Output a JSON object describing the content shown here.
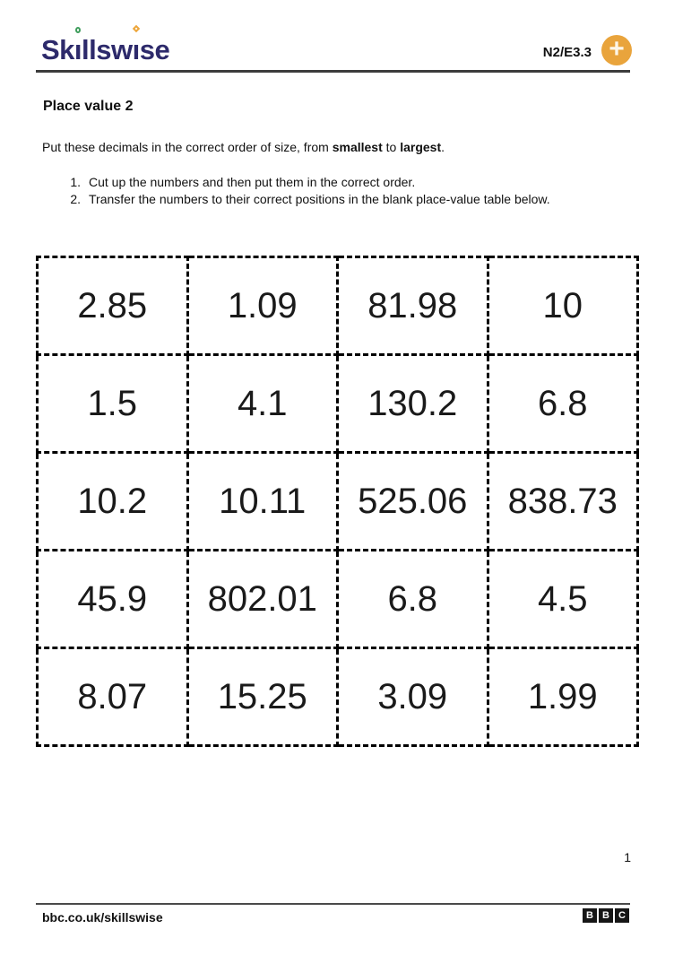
{
  "colors": {
    "logo_indigo": "#2d2a6b",
    "accent_orange": "#e9a43c",
    "dot_green": "#3e9d5c",
    "rule_dark": "#3c3c3c",
    "card_border": "#000000"
  },
  "header": {
    "logo_text": "Skillswise",
    "logo_segments": {
      "s1": "Sk",
      "i1": "ı",
      "s2": "llsw",
      "i2": "ı",
      "s3": "se"
    },
    "level_code": "N2/E3.3",
    "plus_glyph": "+"
  },
  "content": {
    "title": "Place value 2",
    "intro": {
      "pre": "Put these decimals in the correct order of size, from ",
      "bold1": "smallest",
      "mid": " to ",
      "bold2": "largest",
      "post": "."
    },
    "instructions": [
      {
        "num": "1.",
        "text": "Cut up the numbers and then put them in the correct order."
      },
      {
        "num": "2.",
        "text": "Transfer the numbers to their correct positions in the blank place-value table below."
      }
    ]
  },
  "grid": {
    "rows": [
      [
        "2.85",
        "1.09",
        "81.98",
        "10"
      ],
      [
        "1.5",
        "4.1",
        "130.2",
        "6.8"
      ],
      [
        "10.2",
        "10.11",
        "525.06",
        "838.73"
      ],
      [
        "45.9",
        "802.01",
        "6.8",
        "4.5"
      ],
      [
        "8.07",
        "15.25",
        "3.09",
        "1.99"
      ]
    ]
  },
  "footer": {
    "page_number": "1",
    "site_url": "bbc.co.uk/skillswise",
    "bbc_blocks": [
      "B",
      "B",
      "C"
    ]
  }
}
